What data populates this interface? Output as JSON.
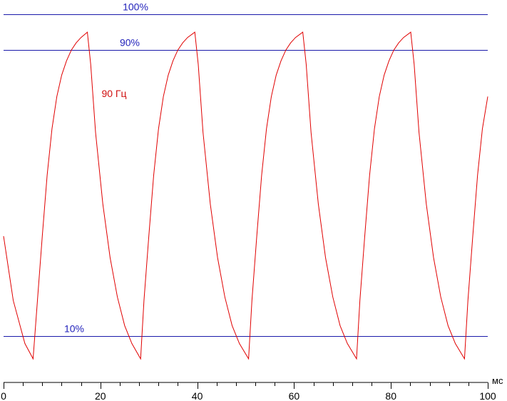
{
  "chart_data": {
    "type": "line",
    "x_unit": "мс",
    "xlim": [
      0,
      100
    ],
    "ylim": [
      0,
      100
    ],
    "x_ticks": [
      0,
      20,
      40,
      60,
      80,
      100
    ],
    "x_minor_step": 4,
    "reference_lines": [
      {
        "label": "100%",
        "value": 100
      },
      {
        "label": "90%",
        "value": 90
      },
      {
        "label": "10%",
        "value": 10
      }
    ],
    "series": [
      {
        "name": "90 Гц",
        "color": "#e00000",
        "points": [
          [
            0,
            38
          ],
          [
            2,
            20
          ],
          [
            4.4,
            8
          ],
          [
            6.1,
            3.7
          ],
          [
            7,
            20
          ],
          [
            8,
            38
          ],
          [
            9,
            55
          ],
          [
            10,
            68
          ],
          [
            11,
            77
          ],
          [
            12,
            83
          ],
          [
            13,
            87
          ],
          [
            14,
            90
          ],
          [
            15,
            92
          ],
          [
            16,
            93.5
          ],
          [
            17.3,
            95
          ],
          [
            18,
            86
          ],
          [
            19,
            67
          ],
          [
            20.5,
            47
          ],
          [
            22,
            32
          ],
          [
            23.5,
            21
          ],
          [
            25,
            13
          ],
          [
            26.5,
            8
          ],
          [
            28.3,
            3.7
          ],
          [
            29,
            20
          ],
          [
            30,
            38
          ],
          [
            31,
            55
          ],
          [
            32,
            68
          ],
          [
            33,
            77
          ],
          [
            34,
            83
          ],
          [
            35,
            87
          ],
          [
            36,
            90
          ],
          [
            37,
            92
          ],
          [
            38,
            93.5
          ],
          [
            39.5,
            95
          ],
          [
            40.2,
            86
          ],
          [
            41.2,
            67
          ],
          [
            42.7,
            47
          ],
          [
            44.2,
            32
          ],
          [
            45.7,
            21
          ],
          [
            47.2,
            13
          ],
          [
            48.7,
            8
          ],
          [
            50.6,
            3.7
          ],
          [
            51.3,
            20
          ],
          [
            52.3,
            38
          ],
          [
            53.3,
            55
          ],
          [
            54.3,
            68
          ],
          [
            55.3,
            77
          ],
          [
            56.3,
            83
          ],
          [
            57.3,
            87
          ],
          [
            58.3,
            90
          ],
          [
            59.3,
            92
          ],
          [
            60.3,
            93.5
          ],
          [
            61.8,
            95
          ],
          [
            62.5,
            86
          ],
          [
            63.5,
            67
          ],
          [
            65,
            47
          ],
          [
            66.5,
            32
          ],
          [
            68,
            21
          ],
          [
            69.5,
            13
          ],
          [
            71,
            8
          ],
          [
            72.9,
            3.7
          ],
          [
            73.6,
            20
          ],
          [
            74.6,
            38
          ],
          [
            75.6,
            55
          ],
          [
            76.6,
            68
          ],
          [
            77.6,
            77
          ],
          [
            78.6,
            83
          ],
          [
            79.6,
            87
          ],
          [
            80.6,
            90
          ],
          [
            81.6,
            92
          ],
          [
            82.6,
            93.5
          ],
          [
            84.1,
            95
          ],
          [
            84.8,
            86
          ],
          [
            85.8,
            67
          ],
          [
            87.3,
            47
          ],
          [
            88.8,
            32
          ],
          [
            90.3,
            21
          ],
          [
            91.8,
            13
          ],
          [
            93.3,
            8
          ],
          [
            95.2,
            3.7
          ],
          [
            95.9,
            20
          ],
          [
            96.9,
            38
          ],
          [
            97.9,
            55
          ],
          [
            98.9,
            68
          ],
          [
            100,
            77
          ]
        ]
      }
    ]
  }
}
